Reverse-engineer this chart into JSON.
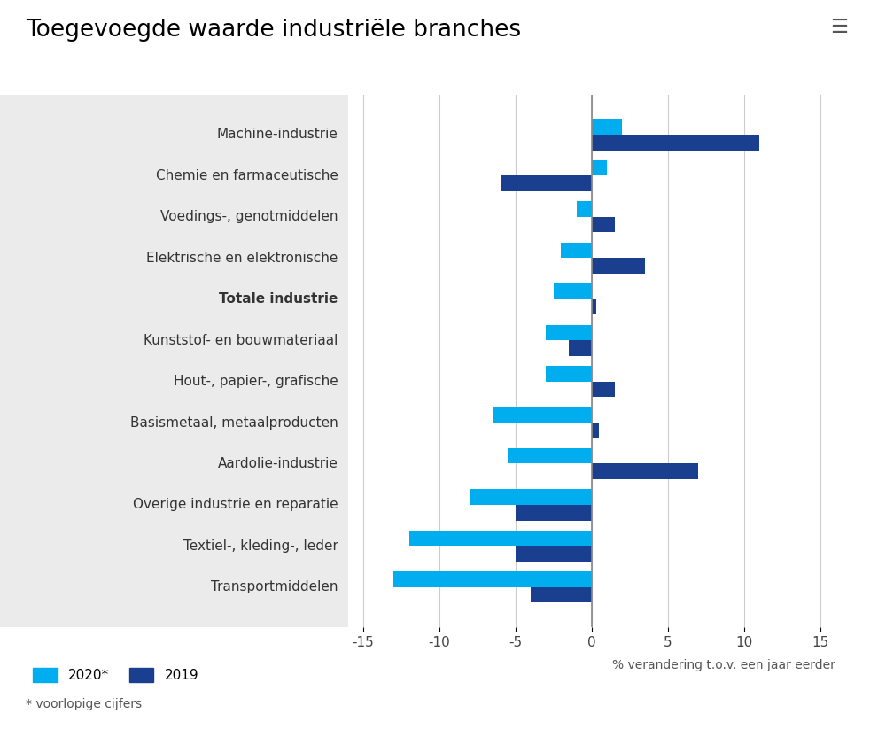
{
  "title": "Toegevoegde waarde industriële branches",
  "xlabel": "% verandering t.o.v. een jaar eerder",
  "categories": [
    "Machine-industrie",
    "Chemie en farmaceutische",
    "Voedings-, genotmiddelen",
    "Elektrische en elektronische",
    "Totale industrie",
    "Kunststof- en bouwmateriaal",
    "Hout-, papier-, grafische",
    "Basismetaal, metaalproducten",
    "Aardolie-industrie",
    "Overige industrie en reparatie",
    "Textiel-, kleding-, leder",
    "Transportmiddelen"
  ],
  "values_2020": [
    2.0,
    1.0,
    -1.0,
    -2.0,
    -2.5,
    -3.0,
    -3.0,
    -6.5,
    -5.5,
    -8.0,
    -12.0,
    -13.0
  ],
  "values_2019": [
    11.0,
    -6.0,
    1.5,
    3.5,
    0.3,
    -1.5,
    1.5,
    0.5,
    7.0,
    -5.0,
    -5.0,
    -4.0
  ],
  "color_2020": "#00ADEF",
  "color_2019": "#1A3F8F",
  "bold_category": "Totale industrie",
  "xlim": [
    -16,
    16
  ],
  "xticks": [
    -15,
    -10,
    -5,
    0,
    5,
    10,
    15
  ],
  "panel_bg_color": "#ebebeb",
  "legend_2020": "2020*",
  "legend_2019": "2019",
  "footnote": "* voorlopige cijfers",
  "title_fontsize": 19,
  "label_fontsize": 11,
  "tick_fontsize": 11,
  "xlabel_fontsize": 10,
  "bar_height": 0.38
}
